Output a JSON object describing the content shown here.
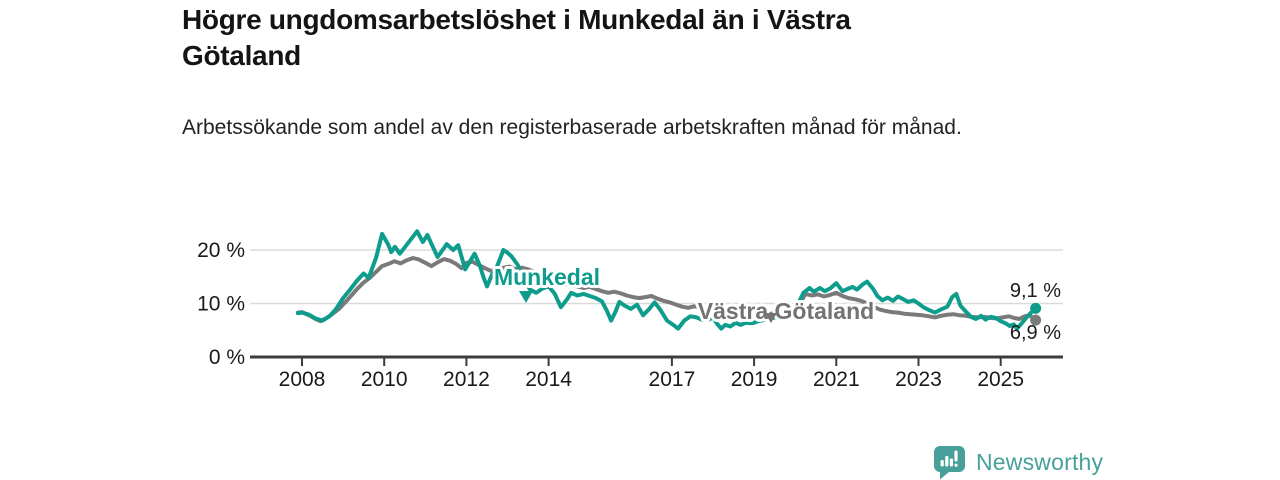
{
  "title": "Högre ungdomsarbetslöshet i Munkedal än i Västra Götaland",
  "subtitle": "Arbetssökande som andel av den registerbaserade arbetskraften månad för månad.",
  "footer": {
    "brand": "Newsworthy",
    "logo_icon": "newsworthy-speech-bubble-bar-chart-icon"
  },
  "colors": {
    "munkedal": "#0E9C8D",
    "vastra_gotaland": "#7A7A7A",
    "vastra_gotaland_label": "#737373",
    "axis": "#3C3C3C",
    "gridline": "#DBDBDB",
    "tick_label": "#1A1A1A",
    "end_label": "#1C1C1C",
    "brand": "#47A09A"
  },
  "chart_data": {
    "type": "line",
    "title": "Högre ungdomsarbetslöshet i Munkedal än i Västra Götaland",
    "unit": "%",
    "grid": "horizontal-only",
    "legend_position": "inline-labels-on-lines",
    "x_axis": {
      "range_years": [
        2007.75,
        2026.5
      ],
      "tick_years": [
        2008,
        2010,
        2012,
        2014,
        2017,
        2019,
        2021,
        2023,
        2025
      ],
      "tick_labels": [
        "2008",
        "2010",
        "2012",
        "2014",
        "2017",
        "2019",
        "2021",
        "2023",
        "2025"
      ]
    },
    "y_axis": {
      "range": [
        0,
        25
      ],
      "tick_values": [
        20,
        10,
        0
      ],
      "tick_labels": [
        "20 %",
        "10 %",
        "0 %"
      ],
      "gridline_values": [
        20,
        10
      ]
    },
    "series": [
      {
        "name": "Munkedal",
        "color": "#0E9C8D",
        "end_value": 9.1,
        "end_label": "9,1 %",
        "points": [
          [
            2007.9,
            8.2
          ],
          [
            2008.0,
            8.3
          ],
          [
            2008.17,
            7.9
          ],
          [
            2008.33,
            7.2
          ],
          [
            2008.5,
            6.8
          ],
          [
            2008.67,
            7.6
          ],
          [
            2008.83,
            9.0
          ],
          [
            2009.0,
            11.0
          ],
          [
            2009.17,
            12.6
          ],
          [
            2009.33,
            14.2
          ],
          [
            2009.5,
            15.6
          ],
          [
            2009.62,
            14.8
          ],
          [
            2009.8,
            18.5
          ],
          [
            2009.95,
            23.0
          ],
          [
            2010.1,
            21.0
          ],
          [
            2010.17,
            19.6
          ],
          [
            2010.26,
            20.6
          ],
          [
            2010.38,
            19.3
          ],
          [
            2010.5,
            20.5
          ],
          [
            2010.65,
            22.0
          ],
          [
            2010.8,
            23.5
          ],
          [
            2010.94,
            21.5
          ],
          [
            2011.05,
            22.8
          ],
          [
            2011.17,
            20.8
          ],
          [
            2011.3,
            18.7
          ],
          [
            2011.42,
            20.0
          ],
          [
            2011.52,
            21.1
          ],
          [
            2011.68,
            20.0
          ],
          [
            2011.8,
            20.9
          ],
          [
            2011.97,
            16.4
          ],
          [
            2012.08,
            17.8
          ],
          [
            2012.2,
            19.3
          ],
          [
            2012.33,
            17.0
          ],
          [
            2012.42,
            14.8
          ],
          [
            2012.5,
            13.2
          ],
          [
            2012.63,
            15.5
          ],
          [
            2012.75,
            17.0
          ],
          [
            2012.9,
            20.0
          ],
          [
            2013.0,
            19.5
          ],
          [
            2013.1,
            18.8
          ],
          [
            2013.25,
            17.2
          ],
          [
            2013.4,
            14.5
          ],
          [
            2013.55,
            12.6
          ],
          [
            2013.7,
            12.0
          ],
          [
            2013.85,
            12.8
          ],
          [
            2014.0,
            13.2
          ],
          [
            2014.15,
            11.8
          ],
          [
            2014.3,
            9.3
          ],
          [
            2014.45,
            10.8
          ],
          [
            2014.55,
            12.0
          ],
          [
            2014.7,
            11.5
          ],
          [
            2014.85,
            11.8
          ],
          [
            2015.0,
            11.4
          ],
          [
            2015.15,
            11.0
          ],
          [
            2015.3,
            10.4
          ],
          [
            2015.42,
            8.6
          ],
          [
            2015.52,
            6.8
          ],
          [
            2015.63,
            8.5
          ],
          [
            2015.72,
            10.3
          ],
          [
            2015.85,
            9.6
          ],
          [
            2016.0,
            9.0
          ],
          [
            2016.15,
            9.8
          ],
          [
            2016.3,
            7.8
          ],
          [
            2016.45,
            9.0
          ],
          [
            2016.58,
            10.2
          ],
          [
            2016.72,
            8.8
          ],
          [
            2016.88,
            6.8
          ],
          [
            2017.05,
            5.9
          ],
          [
            2017.15,
            5.3
          ],
          [
            2017.3,
            6.8
          ],
          [
            2017.45,
            7.6
          ],
          [
            2017.6,
            7.4
          ],
          [
            2017.75,
            6.9
          ],
          [
            2017.9,
            7.0
          ],
          [
            2018.0,
            7.4
          ],
          [
            2018.1,
            6.2
          ],
          [
            2018.2,
            5.3
          ],
          [
            2018.3,
            6.0
          ],
          [
            2018.42,
            5.7
          ],
          [
            2018.55,
            6.4
          ],
          [
            2018.67,
            6.0
          ],
          [
            2018.8,
            6.4
          ],
          [
            2018.95,
            6.3
          ],
          [
            2019.1,
            6.7
          ],
          [
            2019.3,
            7.0
          ],
          [
            2019.5,
            7.4
          ],
          [
            2019.7,
            7.7
          ],
          [
            2019.9,
            8.4
          ],
          [
            2020.05,
            9.6
          ],
          [
            2020.2,
            12.0
          ],
          [
            2020.35,
            12.9
          ],
          [
            2020.45,
            12.2
          ],
          [
            2020.6,
            12.9
          ],
          [
            2020.72,
            12.3
          ],
          [
            2020.85,
            12.8
          ],
          [
            2021.0,
            13.8
          ],
          [
            2021.15,
            12.3
          ],
          [
            2021.3,
            12.8
          ],
          [
            2021.4,
            13.1
          ],
          [
            2021.5,
            12.6
          ],
          [
            2021.65,
            13.6
          ],
          [
            2021.75,
            14.1
          ],
          [
            2021.9,
            12.7
          ],
          [
            2022.0,
            11.4
          ],
          [
            2022.12,
            10.6
          ],
          [
            2022.25,
            11.1
          ],
          [
            2022.38,
            10.5
          ],
          [
            2022.5,
            11.3
          ],
          [
            2022.63,
            10.8
          ],
          [
            2022.75,
            10.3
          ],
          [
            2022.88,
            10.6
          ],
          [
            2023.0,
            10.0
          ],
          [
            2023.12,
            9.3
          ],
          [
            2023.25,
            8.8
          ],
          [
            2023.4,
            8.3
          ],
          [
            2023.55,
            8.9
          ],
          [
            2023.7,
            9.4
          ],
          [
            2023.82,
            11.2
          ],
          [
            2023.92,
            11.8
          ],
          [
            2024.02,
            9.6
          ],
          [
            2024.15,
            8.5
          ],
          [
            2024.28,
            7.5
          ],
          [
            2024.4,
            7.1
          ],
          [
            2024.52,
            7.7
          ],
          [
            2024.63,
            7.0
          ],
          [
            2024.75,
            7.5
          ],
          [
            2024.88,
            7.3
          ],
          [
            2025.0,
            6.7
          ],
          [
            2025.12,
            6.3
          ],
          [
            2025.22,
            5.8
          ],
          [
            2025.32,
            6.1
          ],
          [
            2025.4,
            5.3
          ],
          [
            2025.52,
            6.4
          ],
          [
            2025.63,
            7.4
          ],
          [
            2025.74,
            8.3
          ],
          [
            2025.85,
            9.1
          ]
        ]
      },
      {
        "name": "Västra Götaland",
        "color": "#7A7A7A",
        "end_value": 6.9,
        "end_label": "6,9 %",
        "points": [
          [
            2007.9,
            8.3
          ],
          [
            2008.0,
            8.4
          ],
          [
            2008.17,
            7.8
          ],
          [
            2008.33,
            7.1
          ],
          [
            2008.45,
            6.7
          ],
          [
            2008.6,
            7.3
          ],
          [
            2008.75,
            8.1
          ],
          [
            2008.9,
            9.0
          ],
          [
            2009.05,
            10.2
          ],
          [
            2009.2,
            11.5
          ],
          [
            2009.35,
            12.8
          ],
          [
            2009.5,
            13.9
          ],
          [
            2009.65,
            14.8
          ],
          [
            2009.8,
            15.9
          ],
          [
            2009.95,
            17.0
          ],
          [
            2010.1,
            17.4
          ],
          [
            2010.25,
            17.9
          ],
          [
            2010.4,
            17.5
          ],
          [
            2010.55,
            18.1
          ],
          [
            2010.7,
            18.5
          ],
          [
            2010.85,
            18.2
          ],
          [
            2011.0,
            17.6
          ],
          [
            2011.15,
            17.0
          ],
          [
            2011.3,
            17.7
          ],
          [
            2011.45,
            18.3
          ],
          [
            2011.6,
            18.0
          ],
          [
            2011.75,
            17.4
          ],
          [
            2011.88,
            16.6
          ],
          [
            2012.0,
            17.6
          ],
          [
            2012.15,
            17.8
          ],
          [
            2012.3,
            17.2
          ],
          [
            2012.45,
            16.6
          ],
          [
            2012.6,
            16.1
          ],
          [
            2012.75,
            16.3
          ],
          [
            2012.9,
            16.7
          ],
          [
            2013.05,
            16.9
          ],
          [
            2013.2,
            16.4
          ],
          [
            2013.35,
            16.7
          ],
          [
            2013.5,
            16.4
          ],
          [
            2013.65,
            15.9
          ],
          [
            2013.8,
            15.3
          ],
          [
            2013.95,
            15.5
          ],
          [
            2014.1,
            14.9
          ],
          [
            2014.25,
            14.2
          ],
          [
            2014.4,
            13.7
          ],
          [
            2014.55,
            13.4
          ],
          [
            2014.7,
            13.2
          ],
          [
            2014.85,
            12.9
          ],
          [
            2015.0,
            13.1
          ],
          [
            2015.15,
            12.7
          ],
          [
            2015.3,
            12.3
          ],
          [
            2015.45,
            12.0
          ],
          [
            2015.6,
            12.2
          ],
          [
            2015.75,
            11.9
          ],
          [
            2015.9,
            11.5
          ],
          [
            2016.05,
            11.2
          ],
          [
            2016.2,
            11.0
          ],
          [
            2016.35,
            11.2
          ],
          [
            2016.5,
            11.4
          ],
          [
            2016.65,
            10.9
          ],
          [
            2016.8,
            10.5
          ],
          [
            2016.95,
            10.2
          ],
          [
            2017.1,
            9.8
          ],
          [
            2017.25,
            9.4
          ],
          [
            2017.4,
            9.2
          ],
          [
            2017.55,
            9.5
          ],
          [
            2017.7,
            9.2
          ],
          [
            2017.85,
            8.9
          ],
          [
            2018.0,
            8.6
          ],
          [
            2018.2,
            8.4
          ],
          [
            2018.4,
            8.2
          ],
          [
            2018.6,
            8.1
          ],
          [
            2018.8,
            8.0
          ],
          [
            2019.0,
            7.9
          ],
          [
            2019.2,
            8.0
          ],
          [
            2019.4,
            8.1
          ],
          [
            2019.6,
            8.3
          ],
          [
            2019.8,
            8.6
          ],
          [
            2019.95,
            8.9
          ],
          [
            2020.1,
            9.8
          ],
          [
            2020.25,
            11.8
          ],
          [
            2020.4,
            11.5
          ],
          [
            2020.55,
            11.7
          ],
          [
            2020.7,
            11.3
          ],
          [
            2020.85,
            11.6
          ],
          [
            2021.0,
            12.0
          ],
          [
            2021.15,
            11.4
          ],
          [
            2021.3,
            11.0
          ],
          [
            2021.45,
            10.8
          ],
          [
            2021.6,
            10.5
          ],
          [
            2021.75,
            10.0
          ],
          [
            2021.9,
            9.4
          ],
          [
            2022.05,
            8.9
          ],
          [
            2022.2,
            8.6
          ],
          [
            2022.35,
            8.4
          ],
          [
            2022.5,
            8.3
          ],
          [
            2022.65,
            8.1
          ],
          [
            2022.8,
            8.0
          ],
          [
            2022.95,
            7.9
          ],
          [
            2023.1,
            7.8
          ],
          [
            2023.25,
            7.6
          ],
          [
            2023.4,
            7.4
          ],
          [
            2023.55,
            7.7
          ],
          [
            2023.7,
            7.9
          ],
          [
            2023.85,
            8.0
          ],
          [
            2024.0,
            7.8
          ],
          [
            2024.15,
            7.7
          ],
          [
            2024.3,
            7.5
          ],
          [
            2024.45,
            7.4
          ],
          [
            2024.6,
            7.5
          ],
          [
            2024.75,
            7.3
          ],
          [
            2024.9,
            7.2
          ],
          [
            2025.05,
            7.4
          ],
          [
            2025.2,
            7.6
          ],
          [
            2025.32,
            7.3
          ],
          [
            2025.45,
            7.1
          ],
          [
            2025.58,
            7.6
          ],
          [
            2025.7,
            7.8
          ],
          [
            2025.85,
            6.9
          ]
        ]
      }
    ]
  }
}
